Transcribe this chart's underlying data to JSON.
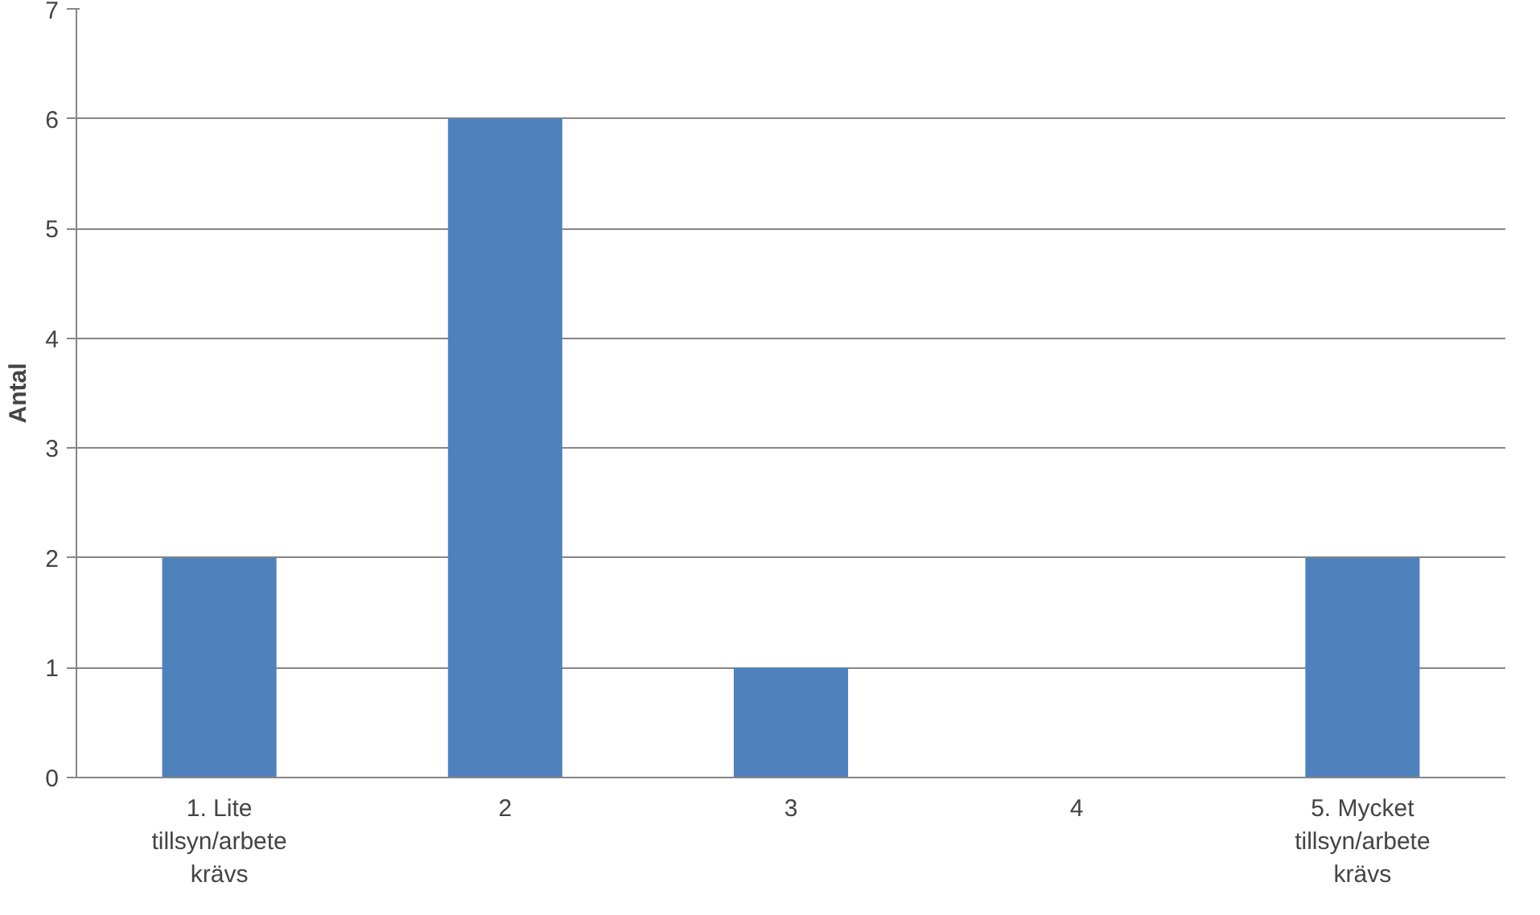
{
  "chart_data": {
    "type": "bar",
    "ylabel": "Antal",
    "categories": [
      "1. Lite tillsyn/arbete krävs",
      "2",
      "3",
      "4",
      "5. Mycket tillsyn/arbete krävs"
    ],
    "values": [
      2,
      6,
      1,
      0,
      2
    ],
    "color": "#4f81bd",
    "ylim": [
      0,
      7
    ],
    "yticks": [
      0,
      1,
      2,
      3,
      4,
      5,
      6,
      7
    ],
    "grid": "y"
  }
}
